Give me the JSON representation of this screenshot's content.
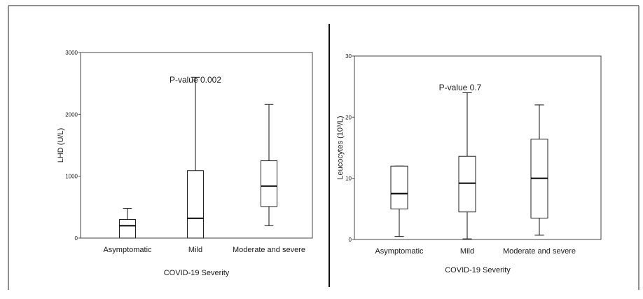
{
  "chart_data": [
    {
      "type": "box",
      "title": "",
      "xlabel": "COVID-19 Severity",
      "ylabel": "LHD (U/L)",
      "annotation": "P-value 0.002",
      "ylim": [
        0,
        3000
      ],
      "yticks": [
        0,
        1000,
        2000,
        3000
      ],
      "ytick_labels": [
        "0",
        "1000",
        "2000",
        "3000"
      ],
      "categories": [
        "Asymptomatic",
        "Mild",
        "Moderate and severe"
      ],
      "boxes": [
        {
          "min": 0,
          "q1": 0,
          "median": 200,
          "q3": 300,
          "max": 480
        },
        {
          "min": 0,
          "q1": 0,
          "median": 320,
          "q3": 1090,
          "max": 2600
        },
        {
          "min": 200,
          "q1": 510,
          "median": 840,
          "q3": 1250,
          "max": 2160
        }
      ],
      "grid": false
    },
    {
      "type": "box",
      "title": "",
      "xlabel": "COVID-19 Severity",
      "ylabel": "Leucocytes (10³/L)",
      "annotation": "P-value 0.7",
      "ylim": [
        0,
        30
      ],
      "yticks": [
        0,
        10,
        20,
        30
      ],
      "ytick_labels": [
        "0",
        "10",
        "20",
        "30"
      ],
      "categories": [
        "Asymptomatic",
        "Mild",
        "Moderate and severe"
      ],
      "boxes": [
        {
          "min": 0.5,
          "q1": 5,
          "median": 7.5,
          "q3": 12,
          "max": 12
        },
        {
          "min": 0.1,
          "q1": 4.5,
          "median": 9.2,
          "q3": 13.6,
          "max": 24
        },
        {
          "min": 0.7,
          "q1": 3.5,
          "median": 10,
          "q3": 16.4,
          "max": 22
        }
      ],
      "grid": false
    }
  ]
}
